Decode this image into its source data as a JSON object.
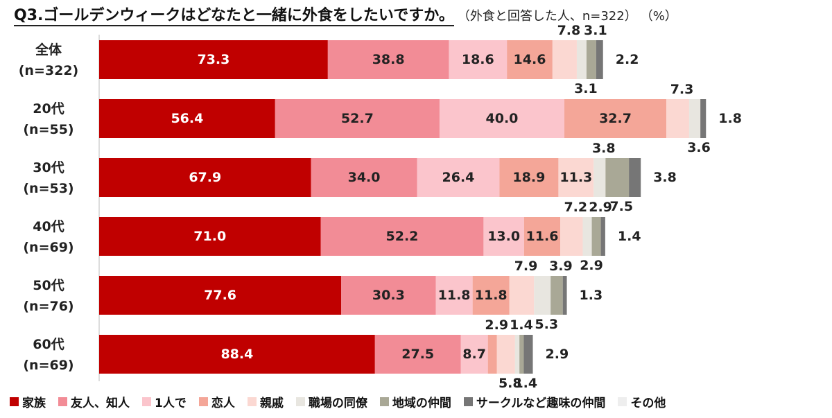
{
  "header": {
    "title": "Q3.ゴールデンウィークはどなたと一緒に外食をしたいですか。",
    "subtitle": "（外食と回答した人、n=322）",
    "unit": "（%）"
  },
  "chart_data": {
    "type": "bar",
    "orientation": "horizontal",
    "stacked": true,
    "xlim": [
      0,
      230
    ],
    "categories": [
      {
        "name": "全体",
        "n": "(n=322)"
      },
      {
        "name": "20代",
        "n": "(n=55)"
      },
      {
        "name": "30代",
        "n": "(n=53)"
      },
      {
        "name": "40代",
        "n": "(n=69)"
      },
      {
        "name": "50代",
        "n": "(n=76)"
      },
      {
        "name": "60代",
        "n": "(n=69)"
      }
    ],
    "series": [
      {
        "name": "家族",
        "color": "#c00000",
        "values": [
          73.3,
          56.4,
          67.9,
          71.0,
          77.6,
          88.4
        ]
      },
      {
        "name": "友人、知人",
        "color": "#f28c96",
        "values": [
          38.8,
          52.7,
          34.0,
          52.2,
          30.3,
          27.5
        ]
      },
      {
        "name": "1人で",
        "color": "#fbc5cc",
        "values": [
          18.6,
          40.0,
          26.4,
          13.0,
          11.8,
          8.7
        ]
      },
      {
        "name": "恋人",
        "color": "#f4a698",
        "values": [
          14.6,
          32.7,
          18.9,
          11.6,
          11.8,
          2.9
        ]
      },
      {
        "name": "親戚",
        "color": "#fbd8d2",
        "values": [
          7.8,
          7.3,
          11.3,
          7.2,
          7.9,
          5.8
        ]
      },
      {
        "name": "職場の同僚",
        "color": "#e8e6e0",
        "values": [
          3.1,
          3.6,
          3.8,
          2.9,
          5.3,
          1.4
        ]
      },
      {
        "name": "地域の仲間",
        "color": "#a9a896",
        "values": [
          3.1,
          0.0,
          7.5,
          2.9,
          3.9,
          1.4
        ]
      },
      {
        "name": "サークルなど趣味の仲間",
        "color": "#767676",
        "values": [
          2.2,
          1.8,
          3.8,
          1.4,
          1.3,
          2.9
        ]
      },
      {
        "name": "その他",
        "color": "#eeeeee",
        "values": [
          0,
          0,
          0,
          0,
          0,
          0
        ]
      }
    ],
    "light_label_series": [
      "家族"
    ],
    "legend_position": "bottom"
  }
}
